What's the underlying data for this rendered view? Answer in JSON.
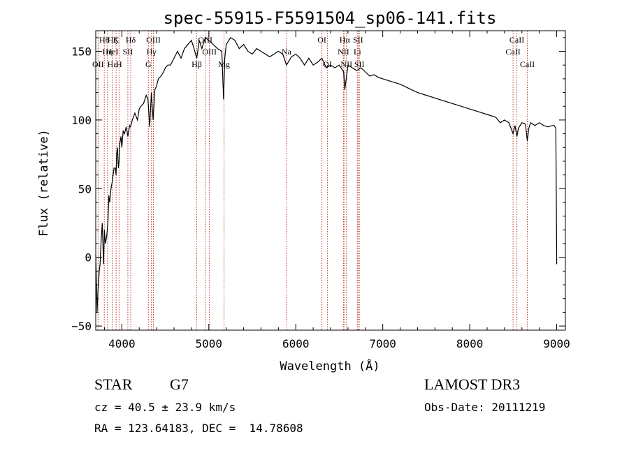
{
  "chart_data": {
    "type": "line",
    "title": "spec-55915-F5591504_sp06-141.fits",
    "xlabel": "Wavelength (Å)",
    "ylabel": "Flux (relative)",
    "xlim": [
      3700,
      9100
    ],
    "ylim": [
      -53,
      165
    ],
    "x_ticks": [
      4000,
      5000,
      6000,
      7000,
      8000,
      9000
    ],
    "y_ticks": [
      -50,
      0,
      50,
      100,
      150
    ],
    "x_tick_labels": [
      "4000",
      "5000",
      "6000",
      "7000",
      "8000",
      "9000"
    ],
    "y_tick_labels": [
      "−50",
      "0",
      "50",
      "100",
      "150"
    ],
    "series": [
      {
        "name": "flux",
        "x": [
          3700,
          3715,
          3725,
          3740,
          3750,
          3760,
          3775,
          3790,
          3800,
          3810,
          3825,
          3840,
          3850,
          3860,
          3875,
          3890,
          3900,
          3910,
          3925,
          3934,
          3940,
          3950,
          3960,
          3968,
          3975,
          3990,
          4000,
          4015,
          4030,
          4050,
          4070,
          4090,
          4100,
          4120,
          4150,
          4180,
          4200,
          4220,
          4250,
          4280,
          4300,
          4320,
          4340,
          4360,
          4380,
          4400,
          4420,
          4450,
          4480,
          4500,
          4530,
          4560,
          4600,
          4640,
          4680,
          4720,
          4760,
          4800,
          4830,
          4861,
          4890,
          4920,
          4960,
          5000,
          5050,
          5100,
          5150,
          5170,
          5183,
          5200,
          5250,
          5300,
          5350,
          5400,
          5450,
          5500,
          5550,
          5600,
          5650,
          5700,
          5750,
          5800,
          5850,
          5893,
          5950,
          6000,
          6050,
          6100,
          6150,
          6200,
          6250,
          6300,
          6350,
          6400,
          6450,
          6500,
          6550,
          6563,
          6580,
          6600,
          6650,
          6700,
          6750,
          6800,
          6850,
          6900,
          6950,
          7000,
          7100,
          7200,
          7300,
          7400,
          7500,
          7600,
          7700,
          7800,
          7900,
          8000,
          8100,
          8200,
          8300,
          8350,
          8400,
          8450,
          8498,
          8520,
          8542,
          8560,
          8600,
          8640,
          8662,
          8680,
          8700,
          8750,
          8800,
          8850,
          8900,
          8950,
          8970,
          8990,
          8995,
          9000
        ],
        "values": [
          2,
          -40,
          -25,
          -10,
          -5,
          10,
          25,
          -5,
          20,
          10,
          15,
          25,
          45,
          40,
          50,
          55,
          60,
          65,
          65,
          60,
          75,
          80,
          65,
          70,
          82,
          88,
          80,
          92,
          90,
          95,
          88,
          96,
          95,
          100,
          105,
          100,
          108,
          110,
          112,
          118,
          115,
          95,
          120,
          100,
          122,
          125,
          130,
          132,
          135,
          138,
          140,
          140,
          145,
          150,
          145,
          152,
          155,
          158,
          152,
          145,
          158,
          152,
          160,
          158,
          155,
          152,
          150,
          115,
          145,
          155,
          160,
          158,
          152,
          155,
          150,
          148,
          152,
          150,
          148,
          146,
          148,
          150,
          148,
          140,
          146,
          148,
          145,
          140,
          145,
          140,
          142,
          145,
          138,
          140,
          138,
          140,
          135,
          122,
          130,
          140,
          138,
          136,
          138,
          135,
          132,
          133,
          131,
          130,
          128,
          126,
          123,
          120,
          118,
          116,
          114,
          112,
          110,
          108,
          106,
          104,
          102,
          98,
          100,
          98,
          90,
          96,
          88,
          94,
          98,
          97,
          85,
          94,
          98,
          96,
          98,
          96,
          95,
          96,
          96,
          94,
          50,
          -5
        ]
      }
    ],
    "line_markers": [
      {
        "label": "Hθ",
        "wavelength": 3798,
        "row": 0
      },
      {
        "label": "OII",
        "wavelength": 3727,
        "row": 2
      },
      {
        "label": "Hη",
        "wavelength": 3835,
        "row": 1
      },
      {
        "label": "HeI",
        "wavelength": 3889,
        "row": 1
      },
      {
        "label": "Hε",
        "wavelength": 3889,
        "row": 2
      },
      {
        "label": "K",
        "wavelength": 3934,
        "row": 0
      },
      {
        "label": "Hζ",
        "wavelength": 3889,
        "row": 0
      },
      {
        "label": "SII",
        "wavelength": 4069,
        "row": 1
      },
      {
        "label": "H",
        "wavelength": 3968,
        "row": 2
      },
      {
        "label": "Hδ",
        "wavelength": 4102,
        "row": 0
      },
      {
        "label": "OIII",
        "wavelength": 4363,
        "row": 0
      },
      {
        "label": "Hγ",
        "wavelength": 4340,
        "row": 1
      },
      {
        "label": "G",
        "wavelength": 4305,
        "row": 2
      },
      {
        "label": "Hβ",
        "wavelength": 4861,
        "row": 2
      },
      {
        "label": "OIII",
        "wavelength": 4959,
        "row": 0
      },
      {
        "label": "OIII",
        "wavelength": 5007,
        "row": 1
      },
      {
        "label": "Mg",
        "wavelength": 5175,
        "row": 2
      },
      {
        "label": "Na",
        "wavelength": 5893,
        "row": 1
      },
      {
        "label": "OI",
        "wavelength": 6300,
        "row": 0
      },
      {
        "label": "OI",
        "wavelength": 6363,
        "row": 2
      },
      {
        "label": "Hα",
        "wavelength": 6563,
        "row": 0
      },
      {
        "label": "NII",
        "wavelength": 6548,
        "row": 1
      },
      {
        "label": "NII",
        "wavelength": 6583,
        "row": 2
      },
      {
        "label": "SII",
        "wavelength": 6716,
        "row": 0
      },
      {
        "label": "Li",
        "wavelength": 6708,
        "row": 1
      },
      {
        "label": "SII",
        "wavelength": 6731,
        "row": 2
      },
      {
        "label": "CaII",
        "wavelength": 8542,
        "row": 0
      },
      {
        "label": "CaII",
        "wavelength": 8498,
        "row": 1
      },
      {
        "label": "CaII",
        "wavelength": 8662,
        "row": 2
      }
    ]
  },
  "info": {
    "class": "STAR",
    "subclass": "G7",
    "survey": "LAMOST DR3",
    "redshift": "cz = 40.5 ± 23.9 km/s",
    "obs_date": "Obs-Date: 20111219",
    "coords": "RA = 123.64183, DEC =  14.78608"
  }
}
